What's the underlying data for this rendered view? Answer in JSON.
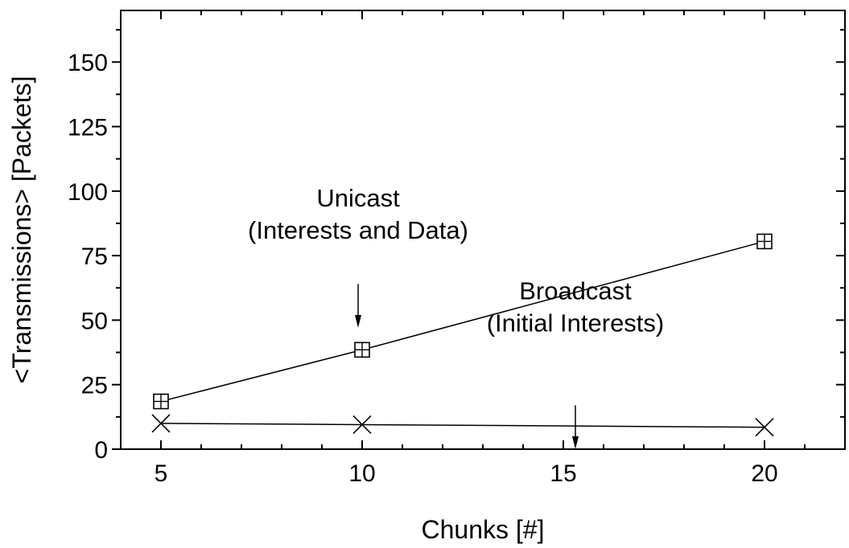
{
  "chart_data": {
    "type": "line",
    "title": "",
    "xlabel": "Chunks [#]",
    "ylabel": "<Transmissions> [Packets]",
    "xlim": [
      4,
      22
    ],
    "ylim": [
      0,
      170
    ],
    "x_ticks": [
      5,
      10,
      15,
      20
    ],
    "y_ticks": [
      0,
      25,
      50,
      75,
      100,
      125,
      150
    ],
    "x": [
      5,
      10,
      20
    ],
    "grid": false,
    "series": [
      {
        "name": "Unicast (Interests and Data)",
        "marker": "square-plus",
        "values": [
          18.5,
          38.5,
          80.5
        ]
      },
      {
        "name": "Broadcast (Initial Interests)",
        "marker": "x-cross",
        "values": [
          10,
          9.5,
          8.5
        ]
      }
    ],
    "annotations": [
      {
        "lines": [
          "Unicast",
          "(Interests and Data)"
        ],
        "text_at": [
          9.9,
          94
        ],
        "arrow_from": [
          9.9,
          64
        ],
        "arrow_to": [
          9.9,
          47
        ]
      },
      {
        "lines": [
          "Broadcast",
          "(Initial Interests)"
        ],
        "text_at": [
          15.3,
          58
        ],
        "arrow_from": [
          15.3,
          17
        ],
        "arrow_to": [
          15.3,
          0
        ]
      }
    ]
  }
}
